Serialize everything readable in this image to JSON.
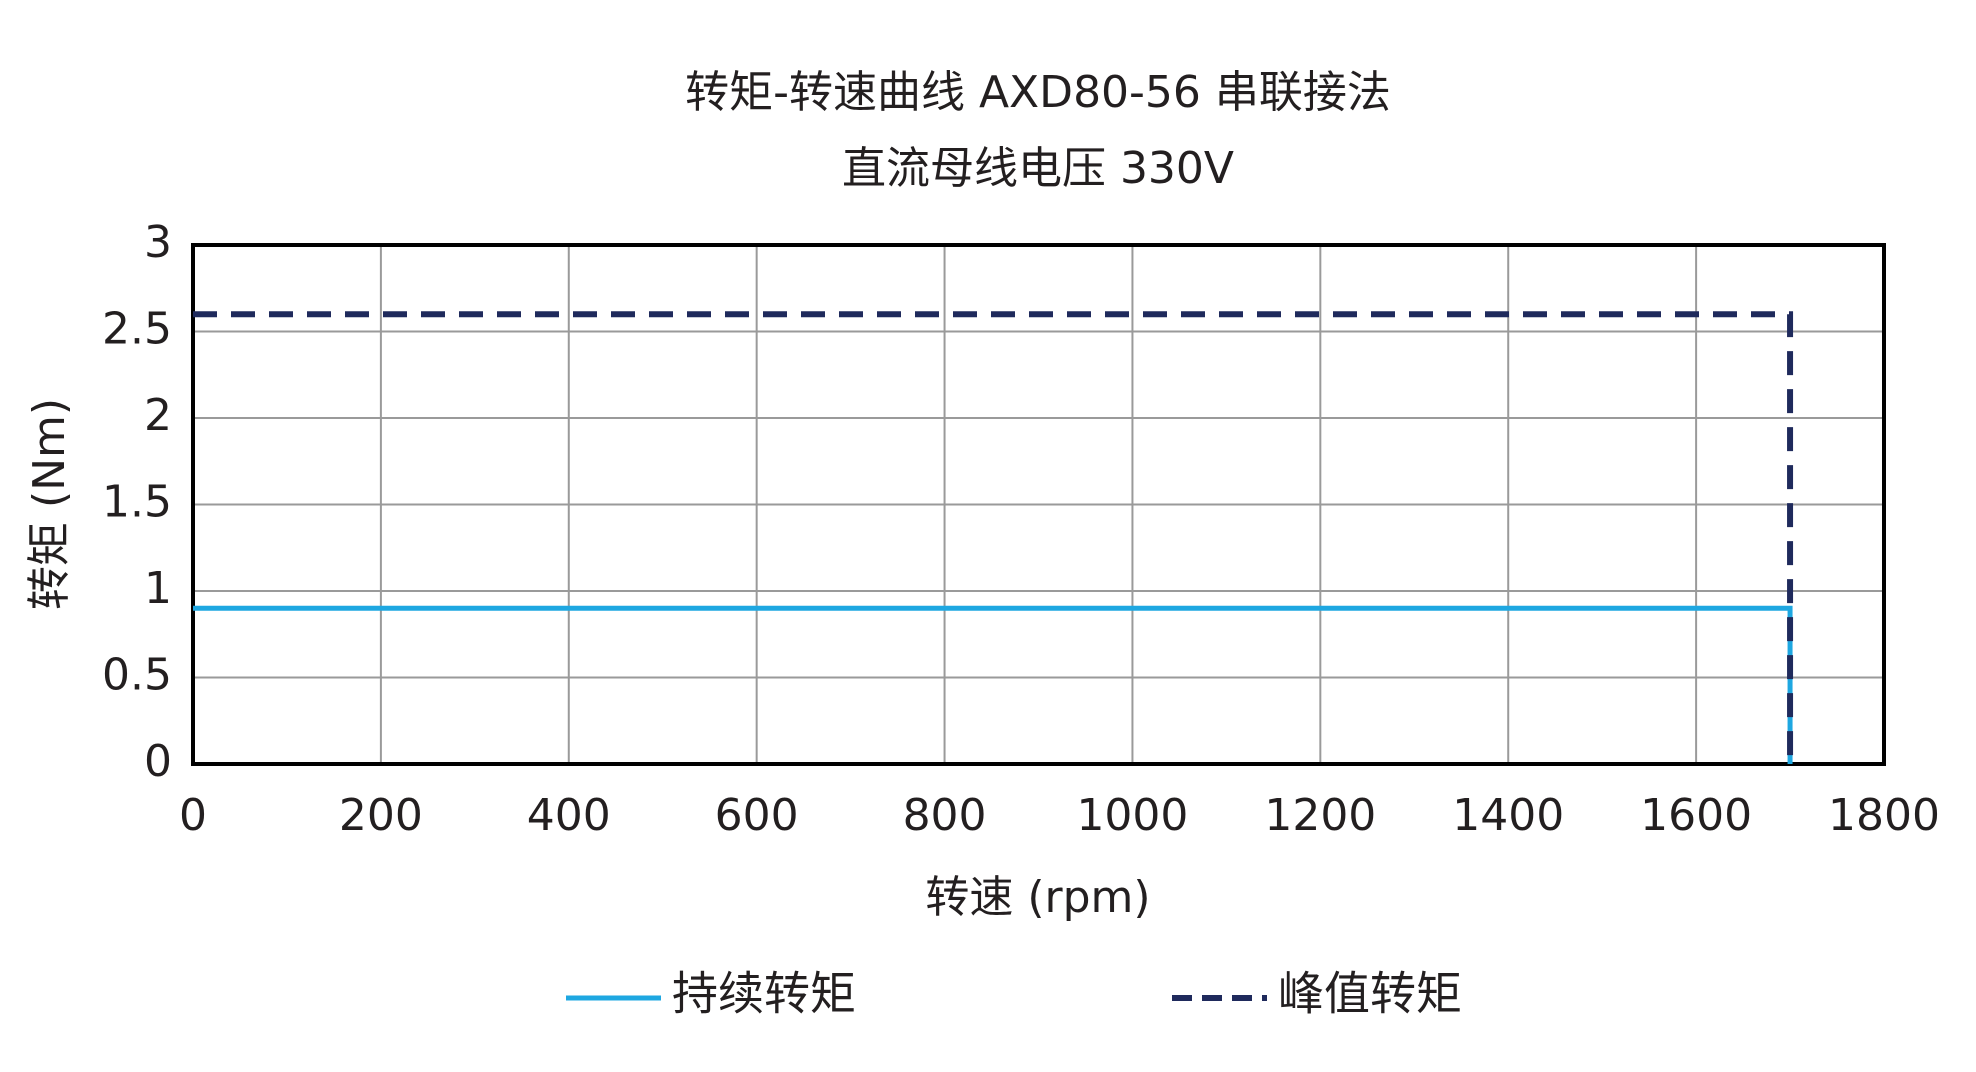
{
  "chart_data": {
    "type": "line",
    "title": "转矩-转速曲线 AXD80-56 串联接法",
    "subtitle": "直流母线电压 330V",
    "x_label": "转速 (rpm)",
    "y_label": "转矩 (Nm)",
    "xlim": [
      0,
      1800
    ],
    "xticks": [
      0,
      200,
      400,
      600,
      800,
      1000,
      1200,
      1400,
      1600,
      1800
    ],
    "ylim": [
      0,
      3
    ],
    "yticks": [
      0,
      0.5,
      1,
      1.5,
      2,
      2.5,
      3
    ],
    "grid": true,
    "legend": "bottom",
    "series": [
      {
        "name": "持续转矩",
        "color": "#1ea7e1",
        "dash": false,
        "x": [
          0,
          1700,
          1700
        ],
        "values": [
          0.9,
          0.9,
          0
        ]
      },
      {
        "name": "峰值转矩",
        "color": "#1f2a5c",
        "dash": true,
        "x": [
          0,
          1700,
          1700
        ],
        "values": [
          2.6,
          2.6,
          0
        ]
      }
    ]
  }
}
